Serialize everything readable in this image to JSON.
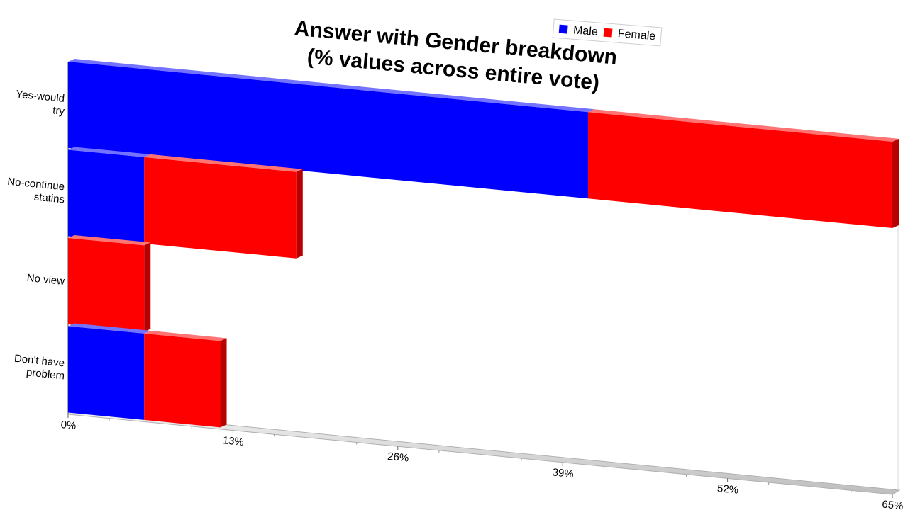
{
  "chart_data": {
    "type": "bar",
    "orientation": "horizontal",
    "stacked": true,
    "title_lines": [
      "Answer with Gender breakdown",
      "(% values across entire vote)"
    ],
    "categories": [
      [
        "Yes-would",
        "try"
      ],
      [
        "No-continue",
        "statins"
      ],
      [
        "No view"
      ],
      [
        "Don't have",
        "problem"
      ]
    ],
    "series": [
      {
        "name": "Male",
        "color": "#0000ff",
        "values": [
          41,
          6,
          0,
          6
        ]
      },
      {
        "name": "Female",
        "color": "#ff0000",
        "values": [
          24,
          12,
          6,
          6
        ]
      }
    ],
    "x_ticks": [
      "0%",
      "13%",
      "26%",
      "39%",
      "52%",
      "65%"
    ],
    "xlim": [
      0,
      65
    ],
    "legend_position": "top",
    "grid": false
  }
}
